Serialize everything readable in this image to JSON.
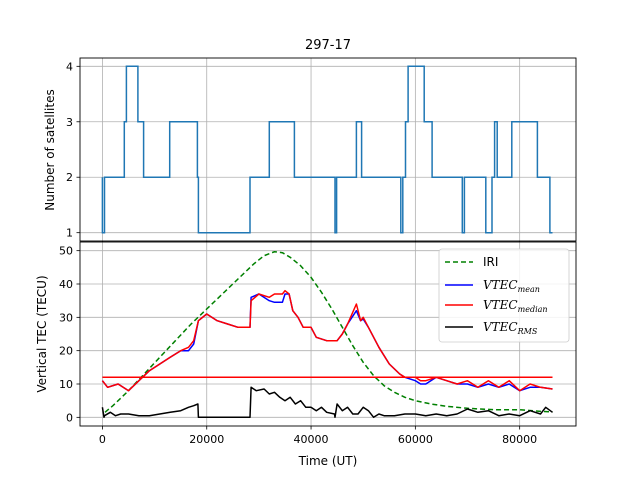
{
  "title": "297-17",
  "chart_data": [
    {
      "type": "line",
      "name_panel": "satellites",
      "ylabel": "Number of satellites",
      "xlim": [
        -4300,
        90800
      ],
      "ylim": [
        0.85,
        4.15
      ],
      "yticks": [
        1,
        2,
        3,
        4
      ],
      "grid": true,
      "color": "#1f77b4",
      "series": [
        {
          "x": [
            0,
            0,
            400,
            400,
            900,
            900,
            4200,
            4200,
            4600,
            4600,
            5200,
            5200,
            6800,
            6800,
            7400,
            7400,
            7900,
            7900,
            12900,
            12900,
            18200,
            18200,
            18400,
            18400,
            28300,
            28300,
            32000,
            32000,
            32700,
            32700,
            36800,
            36800,
            44600,
            44600,
            44900,
            44900,
            45500,
            45500,
            46100,
            46100,
            48700,
            48700,
            49700,
            49700,
            57200,
            57200,
            57600,
            57600,
            58100,
            58100,
            58600,
            58600,
            61700,
            61700,
            62600,
            62600,
            63200,
            63200,
            69000,
            69000,
            69400,
            69400,
            69800,
            69800,
            73500,
            73500,
            74700,
            74700,
            75200,
            75200,
            75700,
            75700,
            78500,
            78500,
            83400,
            83400,
            85800,
            85800,
            86300
          ],
          "y": [
            2,
            1,
            1,
            2,
            2,
            2,
            2,
            3,
            3,
            4,
            4,
            4,
            4,
            3,
            3,
            3,
            3,
            2,
            2,
            3,
            3,
            2,
            2,
            1,
            1,
            2,
            2,
            3,
            3,
            3,
            3,
            2,
            2,
            1,
            1,
            2,
            2,
            2,
            2,
            2,
            2,
            3,
            3,
            2,
            2,
            1,
            1,
            2,
            2,
            3,
            3,
            4,
            4,
            3,
            3,
            3,
            3,
            2,
            2,
            1,
            1,
            2,
            2,
            2,
            2,
            1,
            1,
            2,
            2,
            3,
            3,
            2,
            2,
            3,
            3,
            2,
            2,
            1,
            1
          ]
        }
      ]
    },
    {
      "type": "line",
      "name_panel": "tec",
      "xlabel": "Time (UT)",
      "ylabel": "Vertical TEC (TECU)",
      "xlim": [
        -4300,
        90800
      ],
      "ylim": [
        -2.6,
        52.6
      ],
      "xticks": [
        0,
        20000,
        40000,
        60000,
        80000
      ],
      "yticks": [
        0,
        10,
        20,
        30,
        40,
        50
      ],
      "grid": true,
      "legend_loc": "upper right",
      "series": [
        {
          "name": "IRI",
          "style": "dashed",
          "color": "#008000",
          "x": [
            500,
            2000,
            5000,
            8000,
            11000,
            14000,
            17000,
            20000,
            23000,
            26000,
            29000,
            31000,
            33000,
            34500,
            36000,
            38000,
            40000,
            42000,
            44000,
            46000,
            48000,
            50000,
            52000,
            54000,
            56000,
            58000,
            60000,
            63000,
            66000,
            70000,
            75000,
            80000,
            83000,
            86300
          ],
          "y": [
            1.5,
            3.5,
            8,
            13,
            18,
            23,
            28,
            32.5,
            37,
            41.5,
            46,
            48.5,
            49.7,
            49.4,
            48,
            45.5,
            42,
            37.5,
            32.5,
            27,
            21.5,
            16.5,
            12.5,
            9.5,
            7.5,
            6,
            5,
            4,
            3.3,
            2.7,
            2.3,
            2.3,
            1.9,
            1.6
          ]
        },
        {
          "name": "VTEC_mean",
          "label_base": "VTEC",
          "label_sub": "mean",
          "color": "#0000ff",
          "x": [
            0,
            1000,
            3000,
            5000,
            7000,
            9000,
            11000,
            13000,
            15000,
            16500,
            17500,
            18400,
            20000,
            22000,
            24000,
            26000,
            28300,
            28500,
            30000,
            32000,
            33000,
            34500,
            35000,
            35800,
            36500,
            37500,
            38500,
            40000,
            41000,
            43000,
            45000,
            46000,
            47000,
            48700,
            49500,
            50000,
            51000,
            53000,
            55000,
            57000,
            58000,
            60000,
            61000,
            62000,
            64000,
            66000,
            68000,
            70000,
            72000,
            74000,
            76000,
            78000,
            80000,
            82000,
            84000,
            86300
          ],
          "y": [
            11,
            9,
            10,
            8,
            11,
            14,
            16,
            18,
            20,
            20,
            22,
            29,
            31,
            29,
            28,
            27,
            27,
            36,
            37,
            35,
            34.5,
            34.5,
            37,
            37,
            32,
            30,
            27,
            27,
            24,
            23,
            23,
            25,
            28,
            32,
            29,
            29.5,
            27,
            21,
            16,
            13,
            12,
            11,
            10,
            10,
            12,
            11,
            10,
            10,
            9,
            10,
            9,
            10,
            8,
            9,
            9,
            8.5
          ]
        },
        {
          "name": "VTEC_median",
          "label_base": "VTEC",
          "label_sub": "median",
          "color": "#ff0000",
          "x": [
            0,
            1000,
            3000,
            5000,
            7000,
            9000,
            11000,
            13000,
            15000,
            16500,
            17500,
            18400,
            20000,
            22000,
            24000,
            26000,
            28300,
            28500,
            30000,
            32000,
            33000,
            34500,
            35000,
            35800,
            36500,
            37500,
            38500,
            40000,
            41000,
            43000,
            45000,
            46000,
            47000,
            48700,
            49500,
            50000,
            51000,
            53000,
            55000,
            57000,
            58000,
            60000,
            61000,
            62000,
            64000,
            66000,
            68000,
            70000,
            72000,
            74000,
            76000,
            78000,
            80000,
            82000,
            84000,
            86300
          ],
          "y": [
            11,
            9,
            10,
            8,
            11,
            14,
            16,
            18,
            20,
            21,
            23,
            29,
            31,
            29,
            28,
            27,
            27,
            35,
            37,
            36,
            37,
            37,
            38,
            37,
            32,
            30,
            27,
            27,
            24,
            23,
            23,
            25,
            28,
            34,
            29,
            30,
            27,
            21,
            16,
            13,
            12,
            12,
            11,
            11,
            12,
            11,
            10,
            11,
            9,
            11,
            9,
            11,
            8,
            10,
            9,
            8.5
          ]
        },
        {
          "name": "VTEC_median_level",
          "label_base": "",
          "label_sub": "",
          "color": "#ff0000",
          "x": [
            0,
            86300
          ],
          "y": [
            12,
            12
          ]
        },
        {
          "name": "VTEC_RMS",
          "label_base": "VTEC",
          "label_sub": "RMS",
          "color": "#000000",
          "x": [
            0,
            300,
            400,
            1500,
            2500,
            3500,
            5000,
            7000,
            9000,
            11000,
            13000,
            15000,
            16500,
            17500,
            18300,
            18400,
            28300,
            28500,
            29500,
            31000,
            32000,
            33000,
            34000,
            35000,
            36000,
            37000,
            38000,
            39000,
            40000,
            41000,
            42000,
            43000,
            44500,
            44600,
            45000,
            46000,
            47000,
            48000,
            49000,
            50000,
            51000,
            52000,
            53000,
            54000,
            56000,
            58000,
            60000,
            62000,
            64000,
            66000,
            68000,
            70000,
            72000,
            74000,
            76000,
            78000,
            80000,
            82000,
            84000,
            85000,
            86300
          ],
          "y": [
            3,
            0,
            0.5,
            1.5,
            0.5,
            1,
            1,
            0.5,
            0.5,
            1,
            1.5,
            2,
            3,
            3.5,
            4,
            0,
            0,
            9,
            8,
            8.5,
            7,
            7.5,
            6,
            5,
            6,
            4,
            5,
            3,
            3,
            2,
            3,
            1.5,
            1,
            0,
            4,
            2,
            3,
            1,
            1,
            3,
            2,
            0,
            1,
            0.5,
            0.5,
            1,
            1,
            0.5,
            1,
            0.5,
            1,
            2.5,
            1.5,
            2,
            0.5,
            1,
            0.5,
            2,
            1,
            3,
            1.5
          ]
        }
      ]
    }
  ],
  "legend": {
    "iri": "IRI",
    "mean": {
      "base": "VTEC",
      "sub": "mean"
    },
    "median": {
      "base": "VTEC",
      "sub": "median"
    },
    "rms": {
      "base": "VTEC",
      "sub": "RMS"
    }
  },
  "tick_labels": {
    "top_y": [
      "1",
      "2",
      "3",
      "4"
    ],
    "bottom_y": [
      "0",
      "10",
      "20",
      "30",
      "40",
      "50"
    ],
    "x": [
      "0",
      "20000",
      "40000",
      "60000",
      "80000"
    ]
  }
}
